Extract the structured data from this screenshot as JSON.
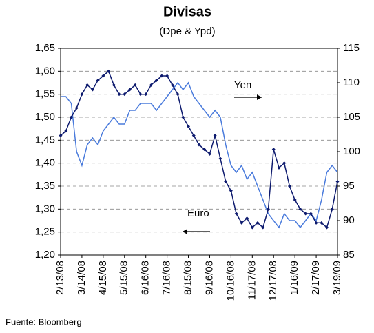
{
  "chart_data": {
    "type": "line",
    "title": "Divisas",
    "subtitle": "(Dpe & Ypd)",
    "source": "Fuente: Bloomberg",
    "annotations": [
      "Yen",
      "Euro"
    ],
    "categories": [
      "2/13/08",
      null,
      null,
      null,
      "3/14/08",
      null,
      null,
      null,
      "4/15/08",
      null,
      null,
      null,
      "5/15/08",
      null,
      null,
      null,
      "6/16/08",
      null,
      null,
      null,
      "7/16/08",
      null,
      null,
      null,
      "8/15/08",
      null,
      null,
      null,
      "9/16/08",
      null,
      null,
      null,
      "10/16/08",
      null,
      null,
      null,
      "11/17/08",
      null,
      null,
      null,
      "12/17/08",
      null,
      null,
      null,
      "1/16/09",
      null,
      null,
      null,
      "2/17/09",
      null,
      null,
      null,
      "3/19/09"
    ],
    "series": [
      {
        "name": "Euro",
        "color": "#0d1a6e",
        "axis": "y",
        "markers": true,
        "values": [
          1.46,
          1.47,
          1.5,
          1.52,
          1.55,
          1.57,
          1.56,
          1.58,
          1.59,
          1.6,
          1.57,
          1.55,
          1.55,
          1.56,
          1.57,
          1.55,
          1.55,
          1.57,
          1.58,
          1.59,
          1.59,
          1.57,
          1.55,
          1.5,
          1.48,
          1.46,
          1.44,
          1.43,
          1.42,
          1.46,
          1.41,
          1.36,
          1.34,
          1.29,
          1.27,
          1.28,
          1.26,
          1.27,
          1.26,
          1.3,
          1.43,
          1.39,
          1.4,
          1.35,
          1.32,
          1.3,
          1.29,
          1.29,
          1.27,
          1.27,
          1.26,
          1.3,
          1.36
        ]
      },
      {
        "name": "Yen",
        "color": "#4a7bdc",
        "axis": "y2",
        "markers": false,
        "values": [
          108,
          108,
          107,
          100,
          98,
          101,
          102,
          101,
          103,
          104,
          105,
          104,
          104,
          106,
          106,
          107,
          107,
          107,
          106,
          107,
          108,
          109,
          110,
          109,
          110,
          108,
          107,
          106,
          105,
          106,
          105,
          101,
          98,
          97,
          98,
          96,
          97,
          95,
          93,
          91,
          90,
          89,
          91,
          90,
          90,
          89,
          90,
          91,
          90,
          93,
          97,
          98,
          97
        ]
      }
    ],
    "ylim": [
      1.2,
      1.65
    ],
    "yticks": [
      {
        "value": 1.2,
        "label": "1,20"
      },
      {
        "value": 1.25,
        "label": "1,25"
      },
      {
        "value": 1.3,
        "label": "1,30"
      },
      {
        "value": 1.35,
        "label": "1,35"
      },
      {
        "value": 1.4,
        "label": "1,40"
      },
      {
        "value": 1.45,
        "label": "1,45"
      },
      {
        "value": 1.5,
        "label": "1,50"
      },
      {
        "value": 1.55,
        "label": "1,55"
      },
      {
        "value": 1.6,
        "label": "1,60"
      },
      {
        "value": 1.65,
        "label": "1,65"
      }
    ],
    "y2lim": [
      85,
      115
    ],
    "y2ticks": [
      85,
      90,
      95,
      100,
      105,
      110,
      115
    ],
    "grid": true
  }
}
